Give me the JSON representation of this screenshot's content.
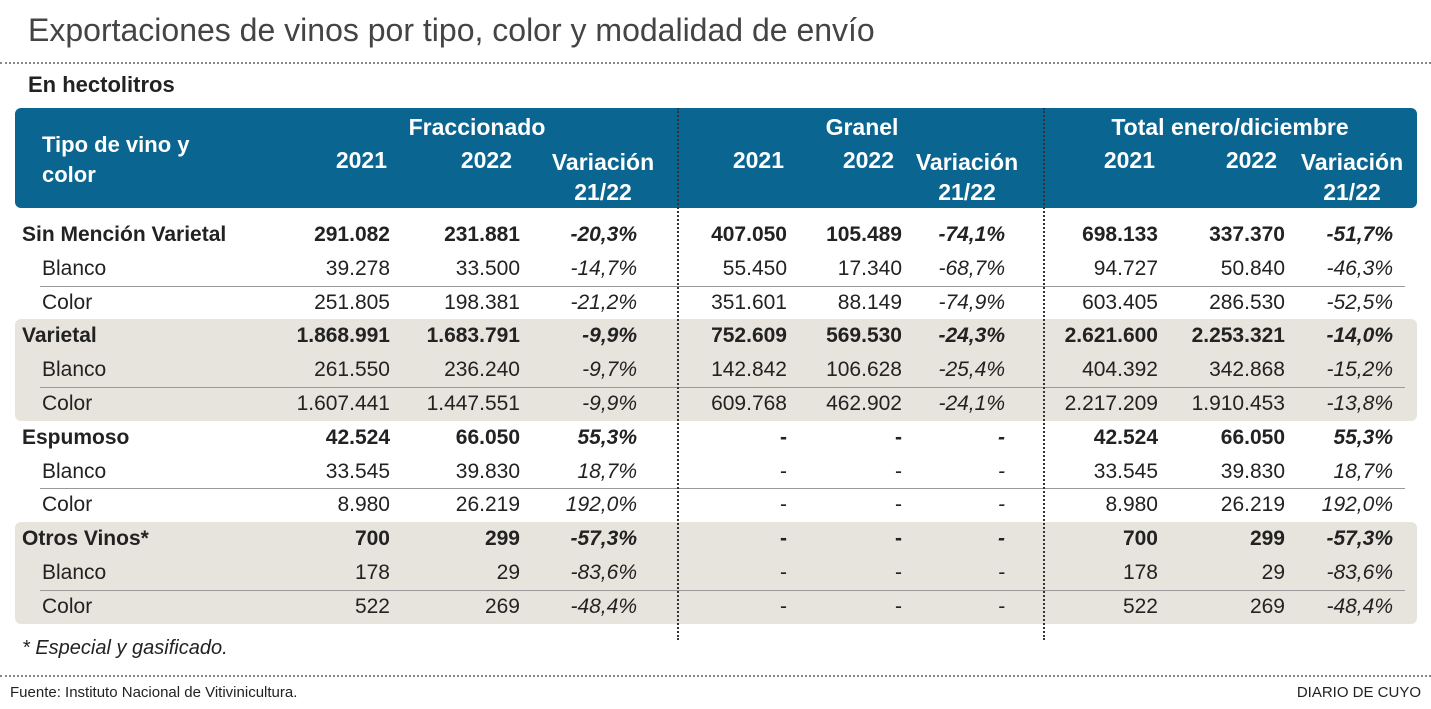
{
  "title": "Exportaciones de vinos por tipo, color y modalidad de envío",
  "subtitle": "En hectolitros",
  "table": {
    "header": {
      "row_label": "Tipo de vino y color",
      "groups": [
        {
          "title": "Fraccionado",
          "columns": [
            "2021",
            "2022",
            "Variación 21/22"
          ]
        },
        {
          "title": "Granel",
          "columns": [
            "2021",
            "2022",
            "Variación 21/22"
          ]
        },
        {
          "title": "Total enero/diciembre",
          "columns": [
            "2021",
            "2022",
            "Variación 21/22"
          ]
        }
      ]
    },
    "sections": [
      {
        "shaded": false,
        "rows": [
          {
            "label": "Sin Mención Varietal",
            "cells": [
              "291.082",
              "231.881",
              "-20,3%",
              "407.050",
              "105.489",
              "-74,1%",
              "698.133",
              "337.370",
              "-51,7%"
            ]
          },
          {
            "label": "Blanco",
            "cells": [
              "39.278",
              "33.500",
              "-14,7%",
              "55.450",
              "17.340",
              "-68,7%",
              "94.727",
              "50.840",
              "-46,3%"
            ]
          },
          {
            "label": "Color",
            "cells": [
              "251.805",
              "198.381",
              "-21,2%",
              "351.601",
              "88.149",
              "-74,9%",
              "603.405",
              "286.530",
              "-52,5%"
            ]
          }
        ]
      },
      {
        "shaded": true,
        "rows": [
          {
            "label": "Varietal",
            "cells": [
              "1.868.991",
              "1.683.791",
              "-9,9%",
              "752.609",
              "569.530",
              "-24,3%",
              "2.621.600",
              "2.253.321",
              "-14,0%"
            ]
          },
          {
            "label": "Blanco",
            "cells": [
              "261.550",
              "236.240",
              "-9,7%",
              "142.842",
              "106.628",
              "-25,4%",
              "404.392",
              "342.868",
              "-15,2%"
            ]
          },
          {
            "label": "Color",
            "cells": [
              "1.607.441",
              "1.447.551",
              "-9,9%",
              "609.768",
              "462.902",
              "-24,1%",
              "2.217.209",
              "1.910.453",
              "-13,8%"
            ]
          }
        ]
      },
      {
        "shaded": false,
        "rows": [
          {
            "label": "Espumoso",
            "cells": [
              "42.524",
              "66.050",
              "55,3%",
              "-",
              "-",
              "-",
              "42.524",
              "66.050",
              "55,3%"
            ]
          },
          {
            "label": "Blanco",
            "cells": [
              "33.545",
              "39.830",
              "18,7%",
              "-",
              "-",
              "-",
              "33.545",
              "39.830",
              "18,7%"
            ]
          },
          {
            "label": "Color",
            "cells": [
              "8.980",
              "26.219",
              "192,0%",
              "-",
              "-",
              "-",
              "8.980",
              "26.219",
              "192,0%"
            ]
          }
        ]
      },
      {
        "shaded": true,
        "rows": [
          {
            "label": "Otros  Vinos*",
            "cells": [
              "700",
              "299",
              "-57,3%",
              "-",
              "-",
              "-",
              "700",
              "299",
              "-57,3%"
            ]
          },
          {
            "label": "Blanco",
            "cells": [
              "178",
              "29",
              "-83,6%",
              "-",
              "-",
              "-",
              "178",
              "29",
              "-83,6%"
            ]
          },
          {
            "label": "Color",
            "cells": [
              "522",
              "269",
              "-48,4%",
              "-",
              "-",
              "-",
              "522",
              "269",
              "-48,4%"
            ]
          }
        ]
      }
    ]
  },
  "footnote": "* Especial y gasificado.",
  "source": "Fuente: Instituto Nacional de Vitivinicultura.",
  "publisher": "DIARIO DE CUYO"
}
